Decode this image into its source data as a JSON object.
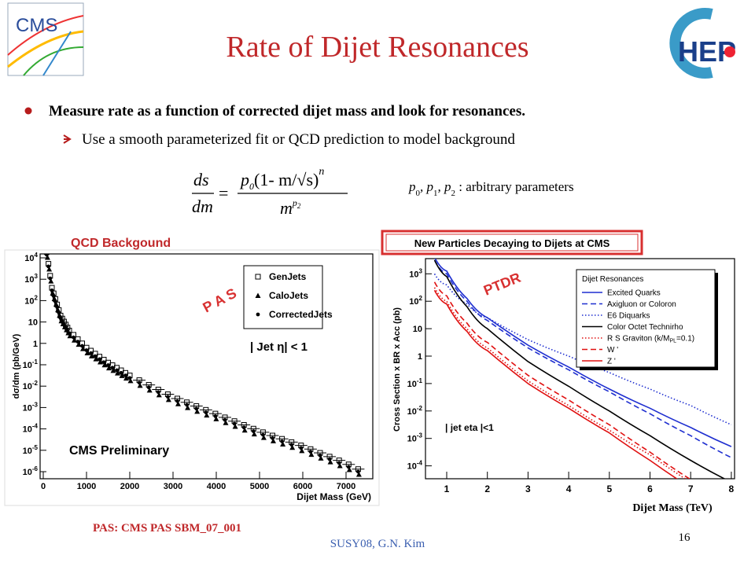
{
  "header": {
    "title": "Rate of Dijet Resonances",
    "logo_left": "CMS",
    "logo_right": "HEP"
  },
  "bullets": [
    {
      "text": "Measure rate as a function of corrected dijet mass and look for resonances.",
      "sub": [
        "Use a smooth parameterized fit or QCD prediction to model background"
      ]
    }
  ],
  "formula": {
    "lhs_num": "ds",
    "lhs_den": "dm",
    "equals": "=",
    "num_p": "p",
    "num_p_sub": "0",
    "num_body": "(1-  m/√s)",
    "num_exp": "n",
    "den_base": "m",
    "den_exp": "p",
    "den_exp_sub": "2"
  },
  "params_note": [
    {
      "t": "p"
    },
    {
      "t": "0",
      "sub": true
    },
    {
      "t": ", p"
    },
    {
      "t": "1",
      "sub": true
    },
    {
      "t": ", p"
    },
    {
      "t": "2",
      "sub": true
    },
    {
      "t": " : arbitrary parameters"
    }
  ],
  "left_plot": {
    "caption": "QCD Backgound",
    "stamp": "P A S",
    "y_label": "dσ/dm (pb/GeV)",
    "x_label": "Dijet Mass (GeV)",
    "x_ticks": [
      0,
      1000,
      2000,
      3000,
      4000,
      5000,
      6000,
      7000
    ],
    "y_ticks": [
      {
        "base": "10",
        "exp": "4"
      },
      {
        "base": "10",
        "exp": "3"
      },
      {
        "base": "10",
        "exp": "2"
      },
      {
        "base": "10"
      },
      {
        "base": "1"
      },
      {
        "base": "10",
        "exp": "-1"
      },
      {
        "base": "10",
        "exp": "-2"
      },
      {
        "base": "10",
        "exp": "-3"
      },
      {
        "base": "10",
        "exp": "-4"
      },
      {
        "base": "10",
        "exp": "-5"
      },
      {
        "base": "10",
        "exp": "-6"
      }
    ],
    "legend": [
      {
        "name": "GenJets",
        "marker": "square"
      },
      {
        "name": "CaloJets",
        "marker": "triangle"
      },
      {
        "name": "CorrectedJets",
        "marker": "circle"
      }
    ],
    "cut": "| Jet  η| < 1",
    "watermark": "CMS Preliminary"
  },
  "right_plot": {
    "title": "New Particles Decaying to Dijets at CMS",
    "stamp": "PTDR",
    "y_label": "Cross Section x BR x Acc (pb)",
    "x_label": "Dijet Mass (TeV)",
    "x_ticks": [
      1,
      2,
      3,
      4,
      5,
      6,
      7,
      8
    ],
    "y_ticks": [
      {
        "base": "10",
        "exp": "3"
      },
      {
        "base": "10",
        "exp": "2"
      },
      {
        "base": "10"
      },
      {
        "base": "1"
      },
      {
        "base": "10",
        "exp": "-1"
      },
      {
        "base": "10",
        "exp": "-2"
      },
      {
        "base": "10",
        "exp": "-3"
      },
      {
        "base": "10",
        "exp": "-4"
      }
    ],
    "legend_title": "Dijet Resonances",
    "legend": [
      {
        "name": "Excited Quarks",
        "color": "#1f2fd0",
        "dash": "solid"
      },
      {
        "name": "Axigluon or Coloron",
        "color": "#1f2fd0",
        "dash": "dashed"
      },
      {
        "name": "E6 Diquarks",
        "color": "#1f2fd0",
        "dash": "dotted"
      },
      {
        "name": "Color Octet Technirho",
        "color": "#000000",
        "dash": "solid"
      },
      {
        "name": "R S Graviton (k/M",
        "name_sub": "PL",
        "name_tail": "=0.1)",
        "color": "#e01010",
        "dash": "dotted"
      },
      {
        "name": "W '",
        "color": "#e01010",
        "dash": "dashed"
      },
      {
        "name": "Z '",
        "color": "#e01010",
        "dash": "solid"
      }
    ],
    "cut": "| jet eta |<1"
  },
  "footer": {
    "source": "PAS: CMS PAS SBM_07_001",
    "author": "SUSY08, G.N. Kim",
    "page": 16
  }
}
